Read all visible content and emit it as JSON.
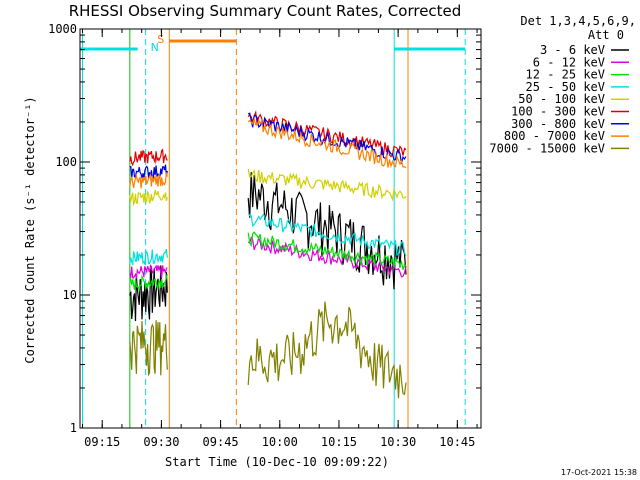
{
  "chart_data": {
    "type": "line",
    "title": "RHESSI Observing Summary Count Rates, Corrected",
    "xlabel": "Start Time (10-Dec-10 09:09:22)",
    "ylabel": "Corrected Count Rate (s⁻¹ detector⁻¹)",
    "y_scale": "log",
    "ylim": [
      1,
      1000
    ],
    "xlim_minutes": [
      "09:09:22",
      "10:51:00"
    ],
    "x_ticks": [
      "09:15",
      "09:30",
      "09:45",
      "10:00",
      "10:15",
      "10:30",
      "10:45"
    ],
    "y_ticks": [
      "1",
      "10",
      "100",
      "1000"
    ],
    "legend_header": [
      "Det 1,3,4,5,6,9,",
      "Att 0"
    ],
    "legend_placement": "right-outside",
    "series": [
      {
        "name": "3 - 6 keV",
        "color": "#000000",
        "seg1": [
          10,
          12
        ],
        "seg2": [
          62,
          18
        ]
      },
      {
        "name": "6 - 12 keV",
        "color": "#e000e0",
        "seg1": [
          15,
          15
        ],
        "seg2": [
          25,
          15
        ]
      },
      {
        "name": "12 - 25 keV",
        "color": "#00e000",
        "seg1": [
          12,
          13
        ],
        "seg2": [
          27,
          17
        ]
      },
      {
        "name": "25 - 50 keV",
        "color": "#00e0e0",
        "seg1": [
          19,
          20
        ],
        "seg2": [
          38,
          22
        ]
      },
      {
        "name": "50 - 100 keV",
        "color": "#d0d000",
        "seg1": [
          53,
          58
        ],
        "seg2": [
          80,
          57
        ]
      },
      {
        "name": "100 - 300 keV",
        "color": "#e00000",
        "seg1": [
          107,
          112
        ],
        "seg2": [
          220,
          117
        ]
      },
      {
        "name": "300 - 800 keV",
        "color": "#0000e0",
        "seg1": [
          83,
          86
        ],
        "seg2": [
          210,
          108
        ]
      },
      {
        "name": "800 - 7000 keV",
        "color": "#ff8000",
        "seg1": [
          70,
          75
        ],
        "seg2": [
          195,
          95
        ]
      },
      {
        "name": "7000 - 15000 keV",
        "color": "#808000",
        "seg1": [
          4.5,
          4.5
        ],
        "seg2": [
          3.5,
          2.6
        ]
      }
    ],
    "segments_time": [
      [
        "09:22:00",
        "09:31:30"
      ],
      [
        "09:52:00",
        "10:32:00"
      ]
    ],
    "saa_bar_time": [
      [
        "09:32:00",
        "09:49:00"
      ]
    ],
    "night_bars_time": [
      [
        "09:09:22",
        "09:24:00"
      ],
      [
        "10:29:00",
        "10:47:00"
      ]
    ],
    "saa_label": "S",
    "night_label": "N",
    "markers": {
      "cyan_solid": [
        "09:10:00",
        "10:29:00"
      ],
      "cyan_dashed": [
        "09:26:00",
        "10:47:00"
      ],
      "orange_solid": [
        "09:32:00",
        "10:32:30"
      ],
      "orange_dashed": [
        "09:49:00"
      ],
      "green_solid": [
        "09:22:00"
      ]
    }
  },
  "footer": {
    "timestamp": "17-Oct-2021 15:38"
  }
}
